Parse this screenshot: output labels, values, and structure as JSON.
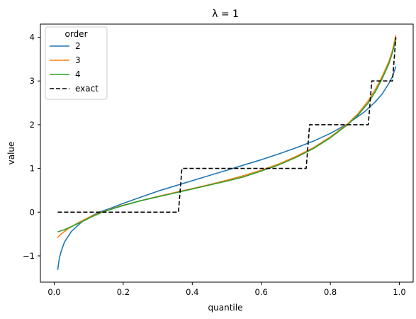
{
  "chart_data": {
    "type": "line",
    "title": "λ = 1",
    "xlabel": "quantile",
    "ylabel": "value",
    "xlim": [
      -0.04,
      1.04
    ],
    "ylim": [
      -1.6,
      4.3
    ],
    "xticks": [
      0.0,
      0.2,
      0.4,
      0.6,
      0.8,
      1.0
    ],
    "xtick_labels": [
      "0.0",
      "0.2",
      "0.4",
      "0.6",
      "0.8",
      "1.0"
    ],
    "yticks": [
      -1,
      0,
      1,
      2,
      3,
      4
    ],
    "ytick_labels": [
      "−1",
      "0",
      "1",
      "2",
      "3",
      "4"
    ],
    "grid": false,
    "legend": {
      "title": "order",
      "placement": "top-left"
    },
    "series": [
      {
        "name": "2",
        "color": "#1f77b4",
        "style": "solid",
        "x": [
          0.01,
          0.015,
          0.02,
          0.03,
          0.05,
          0.08,
          0.1,
          0.13,
          0.16,
          0.2,
          0.25,
          0.3,
          0.35,
          0.4,
          0.45,
          0.5,
          0.55,
          0.6,
          0.65,
          0.7,
          0.75,
          0.8,
          0.85,
          0.9,
          0.93,
          0.95,
          0.97,
          0.98,
          0.99
        ],
        "y": [
          -1.32,
          -1.05,
          -0.9,
          -0.68,
          -0.44,
          -0.22,
          -0.12,
          0.0,
          0.08,
          0.2,
          0.34,
          0.48,
          0.6,
          0.72,
          0.84,
          0.96,
          1.08,
          1.2,
          1.33,
          1.47,
          1.62,
          1.8,
          2.02,
          2.3,
          2.52,
          2.7,
          2.95,
          3.1,
          3.33
        ]
      },
      {
        "name": "3",
        "color": "#ff7f0e",
        "style": "solid",
        "x": [
          0.01,
          0.02,
          0.04,
          0.07,
          0.1,
          0.13,
          0.16,
          0.2,
          0.25,
          0.3,
          0.35,
          0.4,
          0.45,
          0.5,
          0.55,
          0.6,
          0.65,
          0.7,
          0.75,
          0.8,
          0.85,
          0.88,
          0.91,
          0.93,
          0.95,
          0.97,
          0.98,
          0.99
        ],
        "y": [
          -0.58,
          -0.5,
          -0.38,
          -0.24,
          -0.12,
          -0.02,
          0.06,
          0.16,
          0.26,
          0.36,
          0.45,
          0.54,
          0.63,
          0.73,
          0.84,
          0.96,
          1.1,
          1.27,
          1.47,
          1.72,
          2.02,
          2.25,
          2.55,
          2.8,
          3.1,
          3.45,
          3.7,
          4.05
        ]
      },
      {
        "name": "4",
        "color": "#2ca02c",
        "style": "solid",
        "x": [
          0.01,
          0.03,
          0.05,
          0.08,
          0.11,
          0.14,
          0.17,
          0.2,
          0.25,
          0.3,
          0.35,
          0.4,
          0.45,
          0.5,
          0.55,
          0.6,
          0.65,
          0.7,
          0.75,
          0.8,
          0.85,
          0.88,
          0.91,
          0.93,
          0.95,
          0.97,
          0.98,
          0.99
        ],
        "y": [
          -0.45,
          -0.4,
          -0.33,
          -0.22,
          -0.1,
          0.0,
          0.08,
          0.15,
          0.26,
          0.35,
          0.44,
          0.53,
          0.62,
          0.71,
          0.81,
          0.94,
          1.08,
          1.25,
          1.45,
          1.7,
          2.0,
          2.22,
          2.5,
          2.75,
          3.05,
          3.4,
          3.65,
          3.95
        ]
      },
      {
        "name": "exact",
        "color": "#000000",
        "style": "dashed",
        "x": [
          0.01,
          0.36,
          0.37,
          0.73,
          0.74,
          0.91,
          0.92,
          0.98,
          0.99
        ],
        "y": [
          0,
          0,
          1,
          1,
          2,
          2,
          3,
          3,
          4
        ]
      }
    ]
  }
}
